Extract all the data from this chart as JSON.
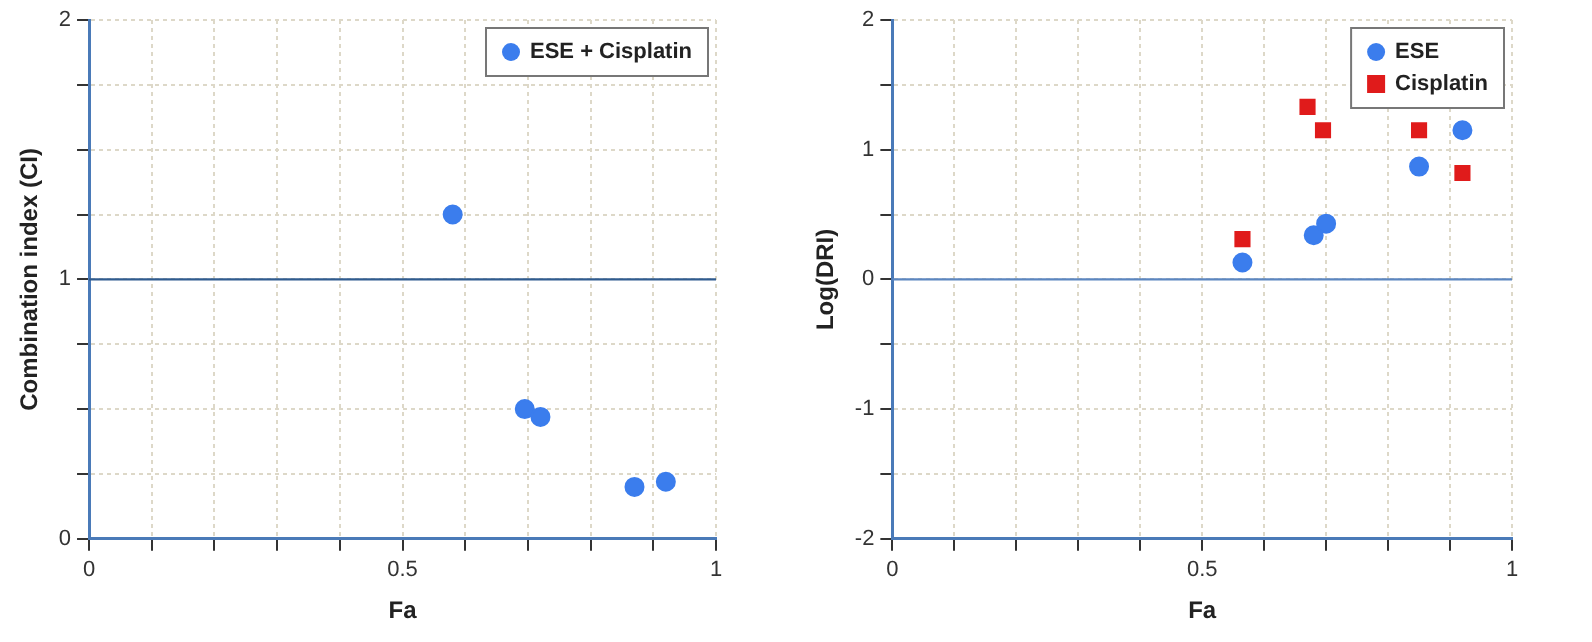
{
  "chart_data": [
    {
      "type": "scatter",
      "xlabel": "Fa",
      "ylabel": "Combination index (CI)",
      "xlim": [
        0,
        1
      ],
      "ylim": [
        0,
        2
      ],
      "xticks": [
        0,
        {
          "value": 0.1,
          "label": null
        },
        {
          "value": 0.2,
          "label": null
        },
        {
          "value": 0.3,
          "label": null
        },
        {
          "value": 0.4,
          "label": null
        },
        0.5,
        {
          "value": 0.6,
          "label": null
        },
        {
          "value": 0.7,
          "label": null
        },
        {
          "value": 0.8,
          "label": null
        },
        {
          "value": 0.9,
          "label": null
        },
        1
      ],
      "yticks": [
        0,
        {
          "value": 0.25,
          "label": null
        },
        {
          "value": 0.5,
          "label": null
        },
        {
          "value": 0.75,
          "label": null
        },
        1,
        {
          "value": 1.25,
          "label": null
        },
        {
          "value": 1.5,
          "label": null
        },
        {
          "value": 1.75,
          "label": null
        },
        2
      ],
      "grid": true,
      "legend": "top right",
      "marker": "circle",
      "ref_lines": [
        {
          "axis": "y",
          "value": 1,
          "color": "#2f5b8f"
        }
      ],
      "series": [
        {
          "name": "ESE + Cisplatin",
          "color": "#3b7ded",
          "x": [
            0.58,
            0.695,
            0.72,
            0.87,
            0.92
          ],
          "values": [
            1.25,
            0.5,
            0.47,
            0.2,
            0.22
          ]
        }
      ]
    },
    {
      "type": "scatter",
      "xlabel": "Fa",
      "ylabel": "Log(DRI)",
      "xlim": [
        0,
        1
      ],
      "ylim": [
        -2,
        2
      ],
      "xticks": [
        0,
        {
          "value": 0.1,
          "label": null
        },
        {
          "value": 0.2,
          "label": null
        },
        {
          "value": 0.3,
          "label": null
        },
        {
          "value": 0.4,
          "label": null
        },
        0.5,
        {
          "value": 0.6,
          "label": null
        },
        {
          "value": 0.7,
          "label": null
        },
        {
          "value": 0.8,
          "label": null
        },
        {
          "value": 0.9,
          "label": null
        },
        1
      ],
      "yticks": [
        -2,
        {
          "value": -1.5,
          "label": null
        },
        -1,
        {
          "value": -0.5,
          "label": null
        },
        0,
        {
          "value": 0.5,
          "label": null
        },
        1,
        {
          "value": 1.5,
          "label": null
        },
        2
      ],
      "grid": true,
      "legend": "top right",
      "ref_lines": [
        {
          "axis": "y",
          "value": 0,
          "color": "#5b86c0"
        }
      ],
      "series": [
        {
          "name": "ESE",
          "color": "#3b7ded",
          "marker": "circle",
          "x": [
            0.565,
            0.68,
            0.7,
            0.85,
            0.92
          ],
          "values": [
            0.13,
            0.34,
            0.43,
            0.87,
            1.15
          ]
        },
        {
          "name": "Cisplatin",
          "color": "#e01b1b",
          "marker": "square",
          "x": [
            0.565,
            0.67,
            0.695,
            0.85,
            0.92
          ],
          "values": [
            0.31,
            1.33,
            1.15,
            1.15,
            0.82
          ]
        }
      ]
    }
  ]
}
